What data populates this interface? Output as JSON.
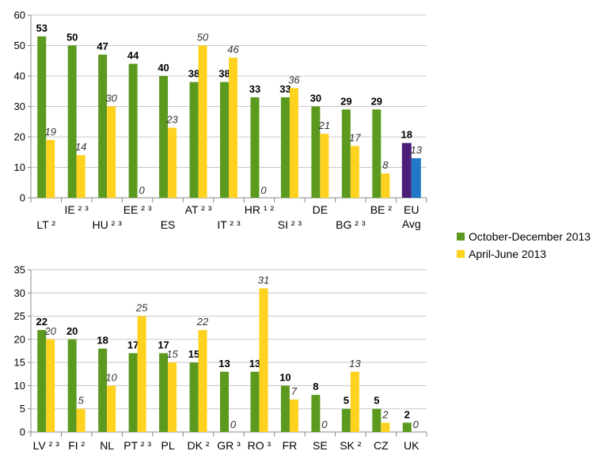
{
  "legend": [
    {
      "label": "October-December 2013",
      "color": "#5b9a1f"
    },
    {
      "label": "April-June 2013",
      "color": "#ffd220"
    }
  ],
  "colors": {
    "series1": "#5b9a1f",
    "series2": "#ffd220",
    "eu_series1": "#4b1f78",
    "eu_series2": "#1f78c8",
    "axis": "#888888",
    "grid": "#c8c8c8"
  },
  "chart_data": [
    {
      "type": "bar",
      "title": "",
      "ylim": [
        0,
        60
      ],
      "yticks": [
        "0",
        "10",
        "20",
        "30",
        "40",
        "50",
        "60"
      ],
      "grid": true,
      "legend_position": "right",
      "categories": [
        [
          "LT ²"
        ],
        [
          "IE ² ³"
        ],
        [
          "HU ² ³"
        ],
        [
          "EE ² ³"
        ],
        [
          "ES"
        ],
        [
          "AT ² ³"
        ],
        [
          "IT ² ³"
        ],
        [
          "HR ¹ ²"
        ],
        [
          "SI ² ³"
        ],
        [
          "DE"
        ],
        [
          "BG ² ³"
        ],
        [
          "BE ²"
        ],
        [
          "EU",
          "Avg"
        ]
      ],
      "series": [
        {
          "name": "October-December 2013",
          "values": [
            53,
            50,
            47,
            44,
            40,
            38,
            38,
            33,
            33,
            30,
            29,
            29,
            18
          ],
          "labels": [
            "53",
            "50",
            "47",
            "44",
            "40",
            "38",
            "38",
            "33",
            "33",
            "30",
            "29",
            "29",
            "18"
          ]
        },
        {
          "name": "April-June 2013",
          "values": [
            19,
            14,
            30,
            0,
            23,
            50,
            46,
            0,
            36,
            21,
            17,
            8,
            13
          ],
          "labels": [
            "19",
            "14",
            "30",
            "0",
            "23",
            "50",
            "46",
            "0",
            "36",
            "21",
            "17",
            "8",
            "13"
          ]
        }
      ]
    },
    {
      "type": "bar",
      "title": "",
      "ylim": [
        0,
        35
      ],
      "yticks": [
        "0",
        "5",
        "10",
        "15",
        "20",
        "25",
        "30",
        "35"
      ],
      "grid": true,
      "categories": [
        [
          "LV ² ³"
        ],
        [
          "FI ²"
        ],
        [
          "NL"
        ],
        [
          "PT ² ³"
        ],
        [
          "PL"
        ],
        [
          "DK ²"
        ],
        [
          "GR ³"
        ],
        [
          "RO ³"
        ],
        [
          "FR"
        ],
        [
          "SE"
        ],
        [
          "SK ²"
        ],
        [
          "CZ"
        ],
        [
          "UK"
        ]
      ],
      "series": [
        {
          "name": "October-December 2013",
          "values": [
            22,
            20,
            18,
            17,
            17,
            15,
            13,
            13,
            10,
            8,
            5,
            5,
            2
          ],
          "labels": [
            "22",
            "20",
            "18",
            "17",
            "17",
            "15",
            "13",
            "13",
            "10",
            "8",
            "5",
            "5",
            "2"
          ]
        },
        {
          "name": "April-June 2013",
          "values": [
            20,
            5,
            10,
            25,
            15,
            22,
            0,
            31,
            7,
            0,
            13,
            2,
            0
          ],
          "labels": [
            "20",
            "5",
            "10",
            "25",
            "15",
            "22",
            "0",
            "31",
            "7",
            "0",
            "13",
            "2",
            "0"
          ]
        }
      ]
    }
  ]
}
